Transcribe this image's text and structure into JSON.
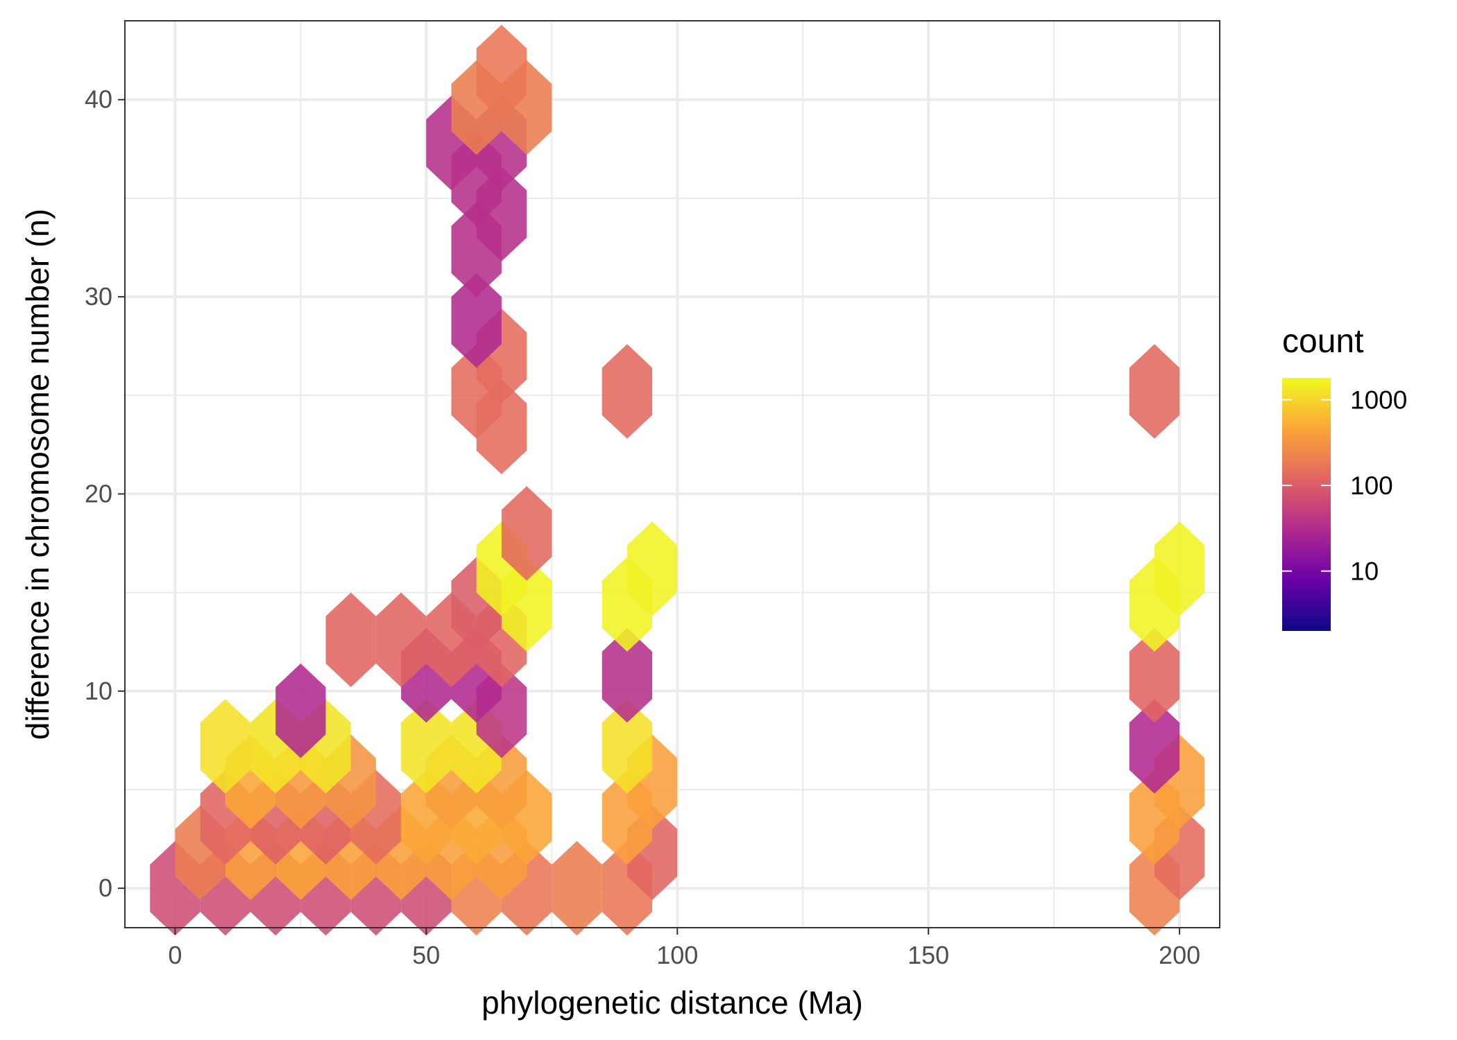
{
  "chart_data": {
    "type": "hexbin",
    "xlabel": "phylogenetic distance (Ma)",
    "ylabel": "difference in chromosome number (n)",
    "xlim": [
      -10,
      208
    ],
    "ylim": [
      -2,
      44
    ],
    "x_ticks": [
      0,
      50,
      100,
      150,
      200
    ],
    "y_ticks": [
      0,
      10,
      20,
      30,
      40
    ],
    "grid": true,
    "legend": {
      "title": "count",
      "placement": "right",
      "scale": "log10",
      "labels": [
        "1000",
        "100",
        "10"
      ],
      "tick_values": [
        1000,
        100,
        10
      ],
      "range": [
        2,
        1800
      ],
      "colors": [
        "#0d0887",
        "#6a00a8",
        "#b12a90",
        "#e16462",
        "#fca636",
        "#f0f921"
      ]
    },
    "hex_size": {
      "dx": 10,
      "dy": 3.6
    },
    "bins": [
      {
        "x": 0,
        "y": 0,
        "count": 70
      },
      {
        "x": 10,
        "y": 0,
        "count": 70
      },
      {
        "x": 20,
        "y": 0,
        "count": 70
      },
      {
        "x": 30,
        "y": 0,
        "count": 70
      },
      {
        "x": 40,
        "y": 0,
        "count": 70
      },
      {
        "x": 50,
        "y": 0,
        "count": 70
      },
      {
        "x": 60,
        "y": 0,
        "count": 220
      },
      {
        "x": 70,
        "y": 0,
        "count": 180
      },
      {
        "x": 80,
        "y": 0,
        "count": 200
      },
      {
        "x": 90,
        "y": 0,
        "count": 180
      },
      {
        "x": 5,
        "y": 1.8,
        "count": 200
      },
      {
        "x": 15,
        "y": 1.8,
        "count": 400
      },
      {
        "x": 25,
        "y": 1.8,
        "count": 450
      },
      {
        "x": 35,
        "y": 1.8,
        "count": 420
      },
      {
        "x": 45,
        "y": 1.8,
        "count": 420
      },
      {
        "x": 55,
        "y": 1.8,
        "count": 400
      },
      {
        "x": 65,
        "y": 1.8,
        "count": 380
      },
      {
        "x": 95,
        "y": 1.8,
        "count": 120
      },
      {
        "x": 10,
        "y": 3.6,
        "count": 120
      },
      {
        "x": 20,
        "y": 3.6,
        "count": 110
      },
      {
        "x": 30,
        "y": 3.6,
        "count": 110
      },
      {
        "x": 40,
        "y": 3.6,
        "count": 140
      },
      {
        "x": 50,
        "y": 3.6,
        "count": 450
      },
      {
        "x": 60,
        "y": 3.6,
        "count": 500
      },
      {
        "x": 70,
        "y": 3.6,
        "count": 450
      },
      {
        "x": 90,
        "y": 3.6,
        "count": 400
      },
      {
        "x": 15,
        "y": 5.4,
        "count": 450
      },
      {
        "x": 25,
        "y": 5.4,
        "count": 350
      },
      {
        "x": 35,
        "y": 5.4,
        "count": 320
      },
      {
        "x": 55,
        "y": 5.4,
        "count": 380
      },
      {
        "x": 65,
        "y": 5.4,
        "count": 380
      },
      {
        "x": 95,
        "y": 5.4,
        "count": 400
      },
      {
        "x": 10,
        "y": 7.2,
        "count": 1200
      },
      {
        "x": 20,
        "y": 7.2,
        "count": 1300
      },
      {
        "x": 30,
        "y": 7.2,
        "count": 1300
      },
      {
        "x": 50,
        "y": 7.2,
        "count": 1300
      },
      {
        "x": 60,
        "y": 7.2,
        "count": 1300
      },
      {
        "x": 90,
        "y": 7.2,
        "count": 1200
      },
      {
        "x": 25,
        "y": 9.0,
        "count": 30
      },
      {
        "x": 65,
        "y": 9.0,
        "count": 40
      },
      {
        "x": 50,
        "y": 10.8,
        "count": 30
      },
      {
        "x": 60,
        "y": 10.8,
        "count": 30
      },
      {
        "x": 90,
        "y": 10.8,
        "count": 35
      },
      {
        "x": 35,
        "y": 12.6,
        "count": 120
      },
      {
        "x": 45,
        "y": 12.6,
        "count": 120
      },
      {
        "x": 55,
        "y": 12.6,
        "count": 120
      },
      {
        "x": 65,
        "y": 12.6,
        "count": 120
      },
      {
        "x": 60,
        "y": 14.4,
        "count": 100
      },
      {
        "x": 70,
        "y": 14.4,
        "count": 1600
      },
      {
        "x": 90,
        "y": 14.4,
        "count": 1600
      },
      {
        "x": 65,
        "y": 16.2,
        "count": 1600
      },
      {
        "x": 95,
        "y": 16.2,
        "count": 1600
      },
      {
        "x": 70,
        "y": 18.0,
        "count": 130
      },
      {
        "x": 65,
        "y": 23.4,
        "count": 140
      },
      {
        "x": 60,
        "y": 25.2,
        "count": 140
      },
      {
        "x": 90,
        "y": 25.2,
        "count": 130
      },
      {
        "x": 65,
        "y": 27.0,
        "count": 140
      },
      {
        "x": 60,
        "y": 28.8,
        "count": 30
      },
      {
        "x": 60,
        "y": 32.4,
        "count": 35
      },
      {
        "x": 65,
        "y": 34.2,
        "count": 35
      },
      {
        "x": 60,
        "y": 36.0,
        "count": 35
      },
      {
        "x": 55,
        "y": 37.8,
        "count": 35
      },
      {
        "x": 65,
        "y": 37.8,
        "count": 35
      },
      {
        "x": 60,
        "y": 39.6,
        "count": 200
      },
      {
        "x": 70,
        "y": 39.6,
        "count": 200
      },
      {
        "x": 65,
        "y": 41.4,
        "count": 180
      },
      {
        "x": 195,
        "y": 0,
        "count": 220
      },
      {
        "x": 200,
        "y": 1.8,
        "count": 140
      },
      {
        "x": 195,
        "y": 3.6,
        "count": 400
      },
      {
        "x": 200,
        "y": 5.4,
        "count": 400
      },
      {
        "x": 195,
        "y": 7.2,
        "count": 30
      },
      {
        "x": 195,
        "y": 10.8,
        "count": 120
      },
      {
        "x": 195,
        "y": 14.4,
        "count": 1600
      },
      {
        "x": 200,
        "y": 16.2,
        "count": 1600
      },
      {
        "x": 195,
        "y": 25.2,
        "count": 130
      }
    ]
  }
}
